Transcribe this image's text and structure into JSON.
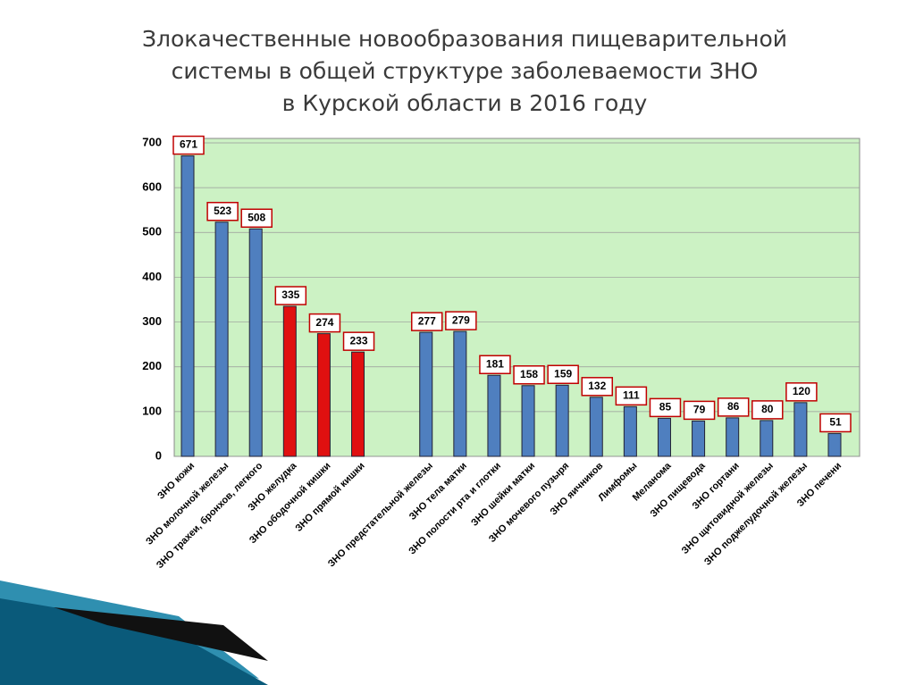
{
  "chart_data": {
    "type": "bar",
    "title": [
      "Злокачественные новообразования пищеварительной",
      "системы в общей структуре заболеваемости ЗНО",
      "в Курской области в 2016 году"
    ],
    "categories": [
      "ЗНО кожи",
      "ЗНО молочной железы",
      "ЗНО трахеи, бронхов, легкого",
      "ЗНО желудка",
      "ЗНО ободочной кишки",
      "ЗНО прямой кишки",
      null,
      "ЗНО предстательной железы",
      "ЗНО тела матки",
      "ЗНО полости рта и глотки",
      "ЗНО шейки матки",
      "ЗНО мочевого пузыря",
      "ЗНО яичников",
      "Лимфомы",
      "Меланома",
      "ЗНО пищевода",
      "ЗНО гортани",
      "ЗНО щитовидной железы",
      "ЗНО поджелудочной железы",
      "ЗНО печени"
    ],
    "values": [
      671,
      523,
      508,
      335,
      274,
      233,
      null,
      277,
      279,
      181,
      158,
      159,
      132,
      111,
      85,
      79,
      86,
      80,
      120,
      51
    ],
    "colors": [
      "#4f7fbf",
      "#4f7fbf",
      "#4f7fbf",
      "#e01010",
      "#e01010",
      "#e01010",
      null,
      "#4f7fbf",
      "#4f7fbf",
      "#4f7fbf",
      "#4f7fbf",
      "#4f7fbf",
      "#4f7fbf",
      "#4f7fbf",
      "#4f7fbf",
      "#4f7fbf",
      "#4f7fbf",
      "#4f7fbf",
      "#4f7fbf",
      "#4f7fbf"
    ],
    "ylim": [
      0,
      700
    ],
    "yticks": [
      0,
      100,
      200,
      300,
      400,
      500,
      600,
      700
    ],
    "grid": true
  }
}
